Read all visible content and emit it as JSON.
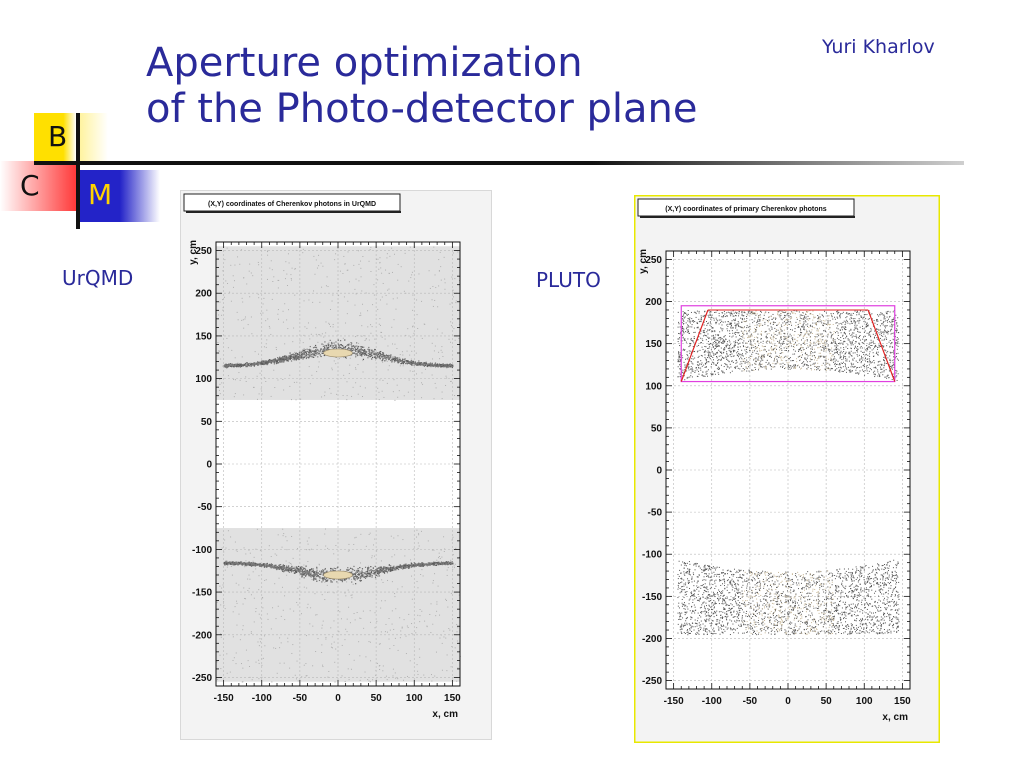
{
  "slide": {
    "title_line1": "Aperture optimization",
    "title_line2": "of the Photo-detector plane",
    "author": "Yuri Kharlov"
  },
  "logo": {
    "b": "B",
    "c": "C",
    "m": "M"
  },
  "panels": {
    "urqmd": {
      "label": "UrQMD"
    },
    "pluto": {
      "label": "PLUTO"
    }
  },
  "colors": {
    "title": "#2a2a9a",
    "frame_pluto": "#e8e800",
    "acceptance_box": "#e040e0",
    "aperture_line": "#e02020",
    "density_low": "#9a9a9a",
    "density_high": "#d8c8a8"
  },
  "chart_data": [
    {
      "type": "scatter",
      "title": "(X,Y) coordinates of Cherenkov photons in UrQMD",
      "xlabel": "x, cm",
      "ylabel": "y, cm",
      "xlim": [
        -160,
        160
      ],
      "ylim": [
        -260,
        260
      ],
      "x_ticks": [
        -150,
        -100,
        -50,
        0,
        50,
        100,
        150
      ],
      "y_ticks": [
        250,
        200,
        150,
        100,
        50,
        0,
        -50,
        -100,
        -150,
        -200,
        -250
      ],
      "grid": true,
      "rings": [
        {
          "x_range": [
            -150,
            150
          ],
          "y_center": 135,
          "y_edge": 115,
          "core_x": [
            -15,
            15
          ],
          "core_y": 130
        },
        {
          "x_range": [
            -150,
            150
          ],
          "y_center": -130,
          "y_edge": -115,
          "core_x": [
            -15,
            15
          ],
          "core_y": -130
        }
      ],
      "background_bands": [
        {
          "y_range": [
            75,
            255
          ]
        },
        {
          "y_range": [
            -255,
            -75
          ]
        }
      ]
    },
    {
      "type": "scatter",
      "title": "(X,Y) coordinates of primary Cherenkov photons",
      "xlabel": "x, cm",
      "ylabel": "y, cm",
      "xlim": [
        -160,
        160
      ],
      "ylim": [
        -260,
        260
      ],
      "x_ticks": [
        -150,
        -100,
        -50,
        0,
        50,
        100,
        150
      ],
      "y_ticks": [
        250,
        200,
        150,
        100,
        50,
        0,
        -50,
        -100,
        -150,
        -200,
        -250
      ],
      "grid": true,
      "scatter_regions": [
        {
          "x_range": [
            -145,
            145
          ],
          "y_top": 190,
          "y_bottom_center": 120,
          "y_bottom_edge": 105
        },
        {
          "x_range": [
            -145,
            145
          ],
          "y_top_center": -120,
          "y_top_edge": -105,
          "y_bottom": -195
        }
      ],
      "acceptance_box": {
        "x_range": [
          -140,
          140
        ],
        "y_range": [
          105,
          195
        ]
      },
      "aperture_lines": [
        {
          "x": [
            -105,
            -140
          ],
          "y": [
            190,
            105
          ]
        },
        {
          "x": [
            105,
            140
          ],
          "y": [
            190,
            105
          ]
        }
      ]
    }
  ]
}
